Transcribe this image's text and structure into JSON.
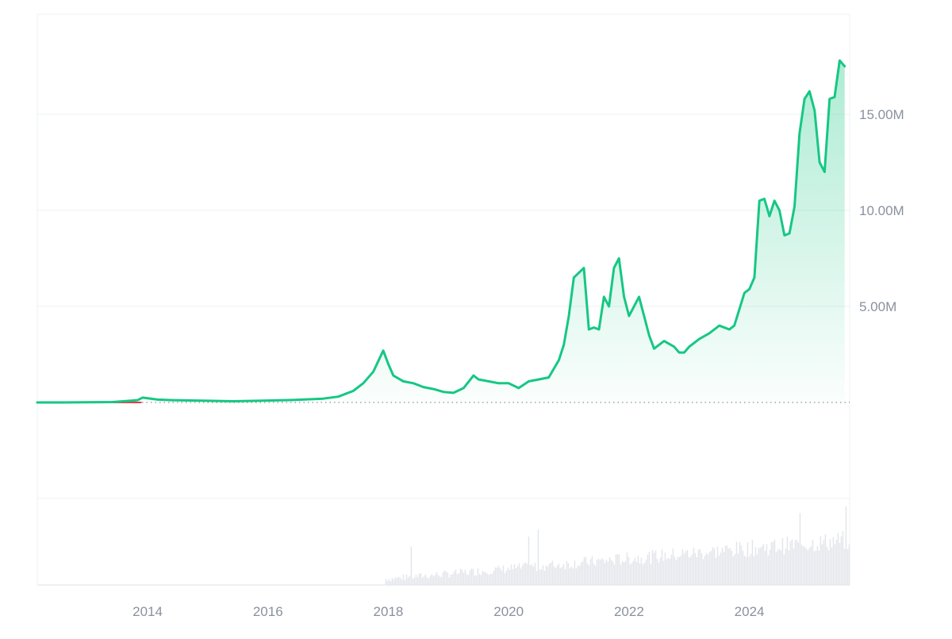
{
  "chart_data": {
    "type": "area",
    "x_axis": {
      "type": "date",
      "range": [
        "2012-03",
        "2025-09"
      ],
      "tick_labels": [
        "2014",
        "2016",
        "2018",
        "2020",
        "2022",
        "2024"
      ]
    },
    "y_axis": {
      "range": [
        0,
        19000000
      ],
      "tick_values": [
        5000000,
        10000000,
        15000000
      ],
      "tick_labels": [
        "5.00M",
        "10.00M",
        "15.00M"
      ],
      "position": "right"
    },
    "baseline": 0,
    "grid": true,
    "legend": "none",
    "colors": {
      "line": "#16c784",
      "area_top": "#16c784",
      "baseline_below": "#ea3943",
      "baseline_dotted": "#8a8f98",
      "grid": "#eef0f3",
      "axis_text": "#8a919e",
      "volume": "#e3e6eb"
    },
    "series": [
      {
        "x": [
          "2012-03",
          "2012-08",
          "2013-01",
          "2013-06",
          "2013-11",
          "2013-12",
          "2014-03",
          "2014-06",
          "2014-12",
          "2015-06",
          "2015-12",
          "2016-06",
          "2016-12",
          "2017-03",
          "2017-06",
          "2017-08",
          "2017-10",
          "2017-12",
          "2018-01",
          "2018-02",
          "2018-04",
          "2018-06",
          "2018-08",
          "2018-10",
          "2018-12",
          "2019-02",
          "2019-04",
          "2019-06",
          "2019-07",
          "2019-09",
          "2019-11",
          "2020-01",
          "2020-03",
          "2020-05",
          "2020-07",
          "2020-09",
          "2020-11",
          "2020-12",
          "2021-01",
          "2021-02",
          "2021-04",
          "2021-05",
          "2021-06",
          "2021-07",
          "2021-08",
          "2021-09",
          "2021-10",
          "2021-11",
          "2021-12",
          "2022-01",
          "2022-03",
          "2022-05",
          "2022-06",
          "2022-08",
          "2022-10",
          "2022-11",
          "2022-12",
          "2023-01",
          "2023-03",
          "2023-05",
          "2023-07",
          "2023-09",
          "2023-10",
          "2023-12",
          "2024-01",
          "2024-02",
          "2024-03",
          "2024-04",
          "2024-05",
          "2024-06",
          "2024-07",
          "2024-08",
          "2024-09",
          "2024-10",
          "2024-11",
          "2024-12",
          "2025-01",
          "2025-02",
          "2025-03",
          "2025-04",
          "2025-05",
          "2025-06",
          "2025-07",
          "2025-08"
        ],
        "values": [
          0,
          0,
          10000,
          20000,
          120000,
          250000,
          150000,
          120000,
          90000,
          60000,
          90000,
          130000,
          200000,
          300000,
          600000,
          1000000,
          1600000,
          2700000,
          2000000,
          1400000,
          1100000,
          1000000,
          800000,
          700000,
          550000,
          500000,
          750000,
          1400000,
          1200000,
          1100000,
          1000000,
          1000000,
          750000,
          1100000,
          1200000,
          1300000,
          2200000,
          3000000,
          4500000,
          6500000,
          7000000,
          3800000,
          3900000,
          3800000,
          5500000,
          5000000,
          7000000,
          7500000,
          5500000,
          4500000,
          5500000,
          3500000,
          2800000,
          3200000,
          2900000,
          2600000,
          2600000,
          2900000,
          3300000,
          3600000,
          4000000,
          3800000,
          4000000,
          5700000,
          5900000,
          6500000,
          10500000,
          10600000,
          9700000,
          10500000,
          10000000,
          8700000,
          8800000,
          10200000,
          14000000,
          15800000,
          16200000,
          15200000,
          12500000,
          12000000,
          15800000,
          15900000,
          17800000,
          17500000
        ]
      }
    ]
  }
}
